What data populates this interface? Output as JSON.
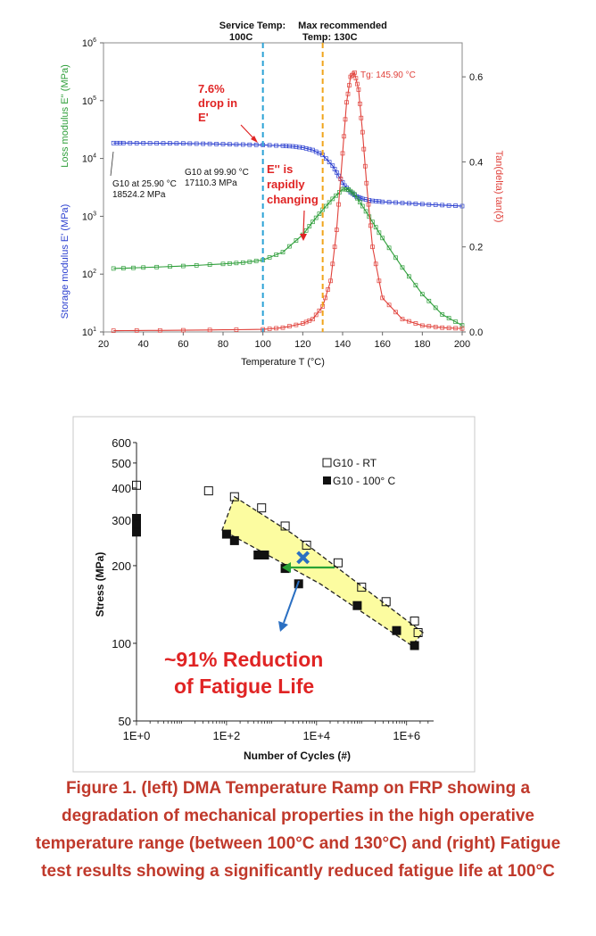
{
  "chart_data": [
    {
      "type": "line",
      "xlabel": "Temperature T (°C)",
      "ylabel_left_top": "Loss modulus E'' (MPa)",
      "ylabel_left_bottom": "Storage modulus E' (MPa)",
      "ylabel_right": "Tan(delta) tan(δ)",
      "x_ticks": [
        "20",
        "40",
        "60",
        "80",
        "100",
        "120",
        "140",
        "160",
        "180",
        "200"
      ],
      "y_left_ticks": [
        [
          "10",
          "1"
        ],
        [
          "10",
          "2"
        ],
        [
          "10",
          "3"
        ],
        [
          "10",
          "4"
        ],
        [
          "10",
          "5"
        ],
        [
          "10",
          "6"
        ]
      ],
      "y_right_ticks": [
        "0.0",
        "0.2",
        "0.4",
        "0.6"
      ],
      "xlim": [
        20,
        200
      ],
      "ylim_left_log": [
        1,
        6
      ],
      "ylim_right": [
        0,
        0.68
      ],
      "log_scale_left": true,
      "series": [
        {
          "name": "E'",
          "color": "#2b3fcf",
          "x": [
            25,
            30,
            40,
            50,
            60,
            70,
            80,
            90,
            100,
            110,
            115,
            120,
            125,
            130,
            135,
            138,
            141,
            144,
            147,
            150,
            155,
            160,
            170,
            180,
            190,
            200
          ],
          "y": [
            18524,
            18500,
            18400,
            18300,
            18200,
            18000,
            17700,
            17400,
            17110,
            16600,
            16200,
            15400,
            14000,
            11500,
            7500,
            5000,
            3400,
            2600,
            2200,
            2000,
            1850,
            1780,
            1700,
            1620,
            1560,
            1500
          ]
        },
        {
          "name": "E''",
          "color": "#2e9e3a",
          "x": [
            25,
            40,
            60,
            80,
            90,
            100,
            110,
            120,
            125,
            130,
            135,
            140,
            143,
            146,
            150,
            155,
            160,
            170,
            180,
            190,
            200
          ],
          "y": [
            125,
            130,
            138,
            150,
            158,
            175,
            240,
            480,
            800,
            1300,
            2000,
            2950,
            2900,
            2400,
            1500,
            800,
            420,
            130,
            45,
            20,
            13
          ]
        },
        {
          "name": "tan δ",
          "color": "#e0403a",
          "x": [
            25,
            60,
            100,
            110,
            120,
            125,
            130,
            134,
            137,
            140,
            142,
            144,
            146,
            148,
            150,
            152,
            155,
            160,
            170,
            180,
            190,
            200
          ],
          "y": [
            0.003,
            0.004,
            0.006,
            0.01,
            0.02,
            0.03,
            0.06,
            0.12,
            0.24,
            0.42,
            0.54,
            0.6,
            0.61,
            0.57,
            0.47,
            0.35,
            0.2,
            0.08,
            0.03,
            0.015,
            0.01,
            0.008
          ]
        }
      ],
      "vlines": [
        {
          "x": 100,
          "color": "#2ba2d6",
          "label_lines": [
            "Service Temp:",
            "100C"
          ]
        },
        {
          "x": 130,
          "color": "#f0a51c",
          "label_lines": [
            "Max recommended",
            "Temp: 130C"
          ]
        }
      ],
      "annotations": {
        "tg": "Tg: 145.90 °C",
        "g10_25": [
          "G10 at 25.90 °C",
          "18524.2 MPa"
        ],
        "g10_99": [
          "G10 at 99.90 °C",
          "17110.3 MPa"
        ],
        "drop": [
          "7.6%",
          "drop in",
          "E'"
        ],
        "rapid": [
          "E'' is",
          "rapidly",
          "changing"
        ]
      }
    },
    {
      "type": "scatter",
      "xlabel": "Number of Cycles (#)",
      "ylabel": "Stress (MPa)",
      "x_ticks": [
        "1E+0",
        "1E+2",
        "1E+4",
        "1E+6"
      ],
      "y_ticks": [
        "50",
        "100",
        "200",
        "300",
        "400",
        "500",
        "600"
      ],
      "xlim_log10": [
        0,
        6.6
      ],
      "ylim": [
        50,
        600
      ],
      "log_scale": true,
      "series": [
        {
          "name": "G10 - RT",
          "marker": "open-square",
          "x": [
            1,
            40,
            150,
            600,
            2000,
            6000,
            30000,
            100000,
            350000,
            1500000,
            1800000
          ],
          "y": [
            410,
            390,
            370,
            335,
            285,
            240,
            205,
            165,
            145,
            122,
            110
          ]
        },
        {
          "name": "G10 - 100° C",
          "marker": "filled-square",
          "x": [
            1,
            1,
            1,
            100,
            150,
            500,
            700,
            2000,
            4000,
            80000,
            600000,
            1500000
          ],
          "y": [
            305,
            290,
            270,
            265,
            250,
            220,
            220,
            195,
            170,
            140,
            112,
            98
          ]
        }
      ],
      "average_point": {
        "x": 5000,
        "y": 215,
        "color": "#2a6fc2"
      },
      "annotation": [
        "~91% Reduction",
        "of Fatigue Life"
      ]
    }
  ],
  "caption": [
    "Figure 1. (left) DMA Temperature Ramp on FRP showing a",
    "degradation of mechanical properties in the high operative",
    "temperature range (between 100°C and 130°C) and (right) Fatigue",
    "test results showing a significantly reduced fatigue life at 100°C"
  ]
}
